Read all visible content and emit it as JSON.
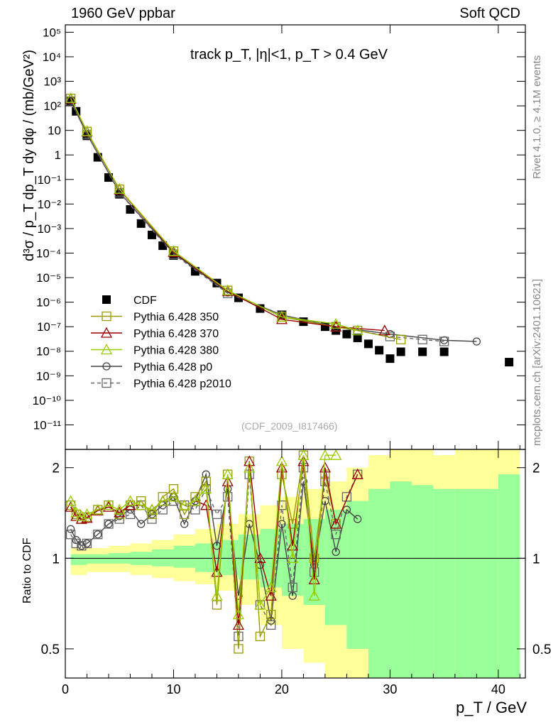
{
  "header": {
    "energy": "1960 GeV ppbar",
    "category": "Soft QCD",
    "rivet": "Rivet 4.1.0, ≥ 4.1M events",
    "mcplots": "mcplots.cern.ch [arXiv:2401.10621]",
    "analysis_id": "(CDF_2009_I817466)"
  },
  "chart_data": {
    "type": "scatter",
    "title": "track p_T, |η|<1, p_T > 0.4 GeV",
    "xlabel": "p_T / GeV",
    "ylabel": "d³σ / p_T dp_T dy dφ / (mb/GeV²)",
    "ratio_ylabel": "Ratio to CDF",
    "xlim": [
      0,
      42.5
    ],
    "ylim": [
      1e-12,
      200000.0
    ],
    "ratio_ylim": [
      0.4,
      2.3
    ],
    "x_ticks": [
      "0",
      "10",
      "20",
      "30",
      "40"
    ],
    "y_ticks": [
      "10⁻¹¹",
      "10⁻¹⁰",
      "10⁻⁹",
      "10⁻⁸",
      "10⁻⁷",
      "10⁻⁶",
      "10⁻⁵",
      "10⁻⁴",
      "10⁻³",
      "10⁻²",
      "10⁻¹",
      "1",
      "10",
      "10²",
      "10³",
      "10⁴",
      "10⁵"
    ],
    "ratio_ticks": [
      "0.5",
      "1",
      "2"
    ],
    "legend": [
      {
        "label": "CDF",
        "color": "#000000",
        "marker": "filled-square",
        "style": "none"
      },
      {
        "label": "Pythia 6.428 350",
        "color": "#999900",
        "marker": "open-square",
        "style": "solid"
      },
      {
        "label": "Pythia 6.428 370",
        "color": "#990000",
        "marker": "open-triangle",
        "style": "solid"
      },
      {
        "label": "Pythia 6.428 380",
        "color": "#99cc00",
        "marker": "open-triangle",
        "style": "solid"
      },
      {
        "label": "Pythia 6.428 p0",
        "color": "#444444",
        "marker": "open-circle",
        "style": "solid"
      },
      {
        "label": "Pythia 6.428 p2010",
        "color": "#666666",
        "marker": "open-square",
        "style": "dashed"
      }
    ],
    "series": [
      {
        "name": "CDF",
        "x": [
          0.5,
          1,
          2,
          3,
          4,
          5,
          6,
          7,
          8,
          9,
          10,
          12,
          14,
          16,
          18,
          20,
          22,
          24,
          25,
          26,
          27,
          28,
          29,
          30,
          31,
          33,
          35,
          41
        ],
        "y": [
          150,
          60,
          6,
          0.8,
          0.12,
          0.025,
          0.006,
          0.0016,
          0.00055,
          0.0002,
          8e-05,
          1.8e-05,
          6e-06,
          1.5e-06,
          5.5e-07,
          3e-07,
          1.6e-07,
          1e-07,
          7e-08,
          5e-08,
          3.5e-08,
          2e-08,
          1.1e-08,
          5e-09,
          9.5e-09,
          9.5e-09,
          9.5e-09,
          3.6e-09
        ]
      },
      {
        "name": "Pythia 6.428 p0",
        "x": [
          0.5,
          2,
          5,
          10,
          15,
          20,
          25,
          30,
          35,
          38
        ],
        "y": [
          160,
          7,
          0.03,
          0.0001,
          2.5e-06,
          3e-07,
          1e-07,
          5e-08,
          2.8e-08,
          2.5e-08
        ]
      },
      {
        "name": "Pythia 6.428 p2010",
        "x": [
          0.5,
          2,
          5,
          10,
          15,
          20,
          25,
          30,
          33,
          35
        ],
        "y": [
          155,
          6.8,
          0.029,
          9e-05,
          2.3e-06,
          3e-07,
          1e-07,
          4e-08,
          3e-08,
          2.5e-08
        ]
      },
      {
        "name": "Pythia 6.428 350",
        "x": [
          0.5,
          2,
          5,
          10,
          15,
          20,
          25,
          27,
          31
        ],
        "y": [
          200,
          9,
          0.04,
          0.00012,
          3e-06,
          2.5e-07,
          1e-07,
          7e-08,
          3e-08
        ]
      },
      {
        "name": "Pythia 6.428 370",
        "x": [
          0.5,
          2,
          5,
          10,
          15,
          20,
          25,
          29.5
        ],
        "y": [
          195,
          8.8,
          0.039,
          0.00011,
          2.8e-06,
          2e-07,
          1e-07,
          7e-08
        ]
      },
      {
        "name": "Pythia 6.428 380",
        "x": [
          0.5,
          2,
          5,
          10,
          15,
          20,
          25,
          27
        ],
        "y": [
          205,
          9.2,
          0.041,
          0.00012,
          3e-06,
          2.5e-07,
          1.3e-07,
          7e-08
        ]
      }
    ],
    "ratio_series": [
      {
        "name": "Pythia 6.428 p0",
        "x": [
          0.5,
          1,
          1.5,
          2,
          3,
          4,
          5,
          6,
          7,
          8,
          9,
          10,
          11,
          12,
          13,
          14,
          15,
          16,
          17,
          18,
          19,
          20,
          21,
          22,
          23,
          24,
          25,
          26,
          27
        ],
        "y": [
          1.25,
          1.15,
          1.1,
          1.12,
          1.2,
          1.3,
          1.38,
          1.45,
          1.3,
          1.4,
          1.5,
          1.6,
          1.3,
          1.55,
          1.9,
          1.1,
          1.7,
          0.75,
          1.3,
          0.95,
          0.62,
          1.3,
          0.75,
          1.8,
          0.95,
          1.55,
          1.05,
          1.45,
          1.35
        ]
      },
      {
        "name": "Pythia 6.428 p2010",
        "x": [
          0.5,
          1,
          1.5,
          2,
          3,
          4,
          5,
          6,
          7,
          8,
          9,
          10,
          11,
          12,
          13,
          14,
          15,
          16,
          17,
          18,
          19,
          20,
          21,
          22,
          23,
          24,
          25,
          26,
          27
        ],
        "y": [
          1.2,
          1.12,
          1.1,
          1.12,
          1.2,
          1.3,
          1.35,
          1.4,
          1.5,
          1.35,
          1.45,
          1.55,
          1.5,
          1.45,
          1.7,
          1.4,
          1.6,
          0.55,
          1.9,
          0.7,
          0.6,
          1.5,
          0.8,
          2.0,
          0.9,
          1.8,
          1.2,
          1.6,
          1.9
        ]
      },
      {
        "name": "Pythia 6.428 350",
        "x": [
          0.5,
          1,
          1.5,
          2,
          3,
          4,
          5,
          6,
          7,
          8,
          9,
          10,
          11,
          12,
          13,
          14,
          15,
          16,
          17,
          18,
          19,
          20,
          21,
          22,
          23,
          24,
          25
        ],
        "y": [
          1.5,
          1.4,
          1.35,
          1.37,
          1.45,
          1.5,
          1.4,
          1.5,
          1.55,
          1.4,
          1.6,
          1.7,
          1.4,
          1.6,
          1.8,
          0.7,
          1.9,
          0.5,
          2.1,
          0.55,
          0.65,
          1.9,
          1.3,
          2.2,
          1.0,
          1.9,
          1.3
        ]
      },
      {
        "name": "Pythia 6.428 370",
        "x": [
          0.5,
          1,
          1.5,
          2,
          3,
          4,
          5,
          6,
          7,
          8,
          9,
          10,
          11,
          12,
          13,
          14,
          15,
          16,
          17,
          18,
          19,
          20,
          21,
          22,
          23,
          24,
          25,
          27
        ],
        "y": [
          1.48,
          1.38,
          1.35,
          1.36,
          1.44,
          1.48,
          1.42,
          1.5,
          1.5,
          1.45,
          1.55,
          1.6,
          1.5,
          1.55,
          1.5,
          0.9,
          1.8,
          0.6,
          2.1,
          1.0,
          0.75,
          2.0,
          1.1,
          2.1,
          0.85,
          2.0,
          1.3,
          1.9
        ]
      },
      {
        "name": "Pythia 6.428 380",
        "x": [
          0.5,
          1,
          1.5,
          2,
          3,
          4,
          5,
          6,
          7,
          8,
          9,
          10,
          11,
          12,
          13,
          14,
          15,
          16,
          17,
          18,
          19,
          20,
          21,
          22,
          23,
          24,
          25
        ],
        "y": [
          1.55,
          1.42,
          1.38,
          1.4,
          1.45,
          1.5,
          1.45,
          1.55,
          1.5,
          1.45,
          1.55,
          1.6,
          1.5,
          1.55,
          1.7,
          0.75,
          1.9,
          0.65,
          2.0,
          0.7,
          0.8,
          2.1,
          1.0,
          2.2,
          0.75,
          2.2,
          2.2
        ]
      }
    ],
    "ratio_bands": {
      "x_edges": [
        0.5,
        2,
        4,
        6,
        8,
        10,
        12,
        14,
        16,
        18,
        20,
        22,
        24,
        26,
        28,
        30,
        32,
        34,
        36,
        40,
        42
      ],
      "yellow_low": [
        0.88,
        0.9,
        0.9,
        0.88,
        0.86,
        0.84,
        0.82,
        0.78,
        0.7,
        0.6,
        0.5,
        0.45,
        0.4,
        0.4,
        0.4,
        0.4,
        0.4,
        0.4,
        0.4,
        0.4
      ],
      "yellow_high": [
        1.08,
        1.08,
        1.1,
        1.12,
        1.15,
        1.2,
        1.25,
        1.3,
        1.4,
        1.5,
        1.6,
        1.7,
        1.8,
        2.0,
        2.2,
        2.3,
        2.3,
        2.2,
        2.3,
        2.3
      ],
      "green_low": [
        0.95,
        0.96,
        0.96,
        0.95,
        0.94,
        0.93,
        0.9,
        0.88,
        0.85,
        0.8,
        0.75,
        0.7,
        0.6,
        0.5,
        0.4,
        0.4,
        0.4,
        0.4,
        0.4,
        0.4
      ],
      "green_high": [
        1.03,
        1.03,
        1.04,
        1.05,
        1.07,
        1.1,
        1.12,
        1.15,
        1.2,
        1.25,
        1.3,
        1.35,
        1.45,
        1.55,
        1.7,
        1.8,
        1.75,
        1.7,
        1.7,
        1.9
      ]
    }
  }
}
